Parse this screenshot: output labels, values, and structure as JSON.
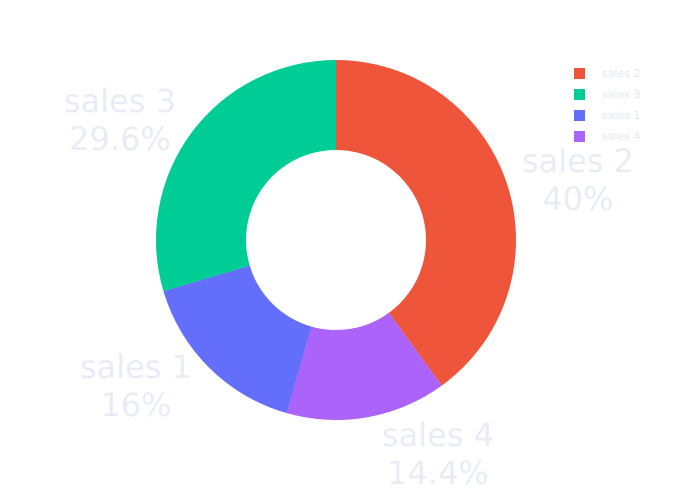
{
  "chart_data": {
    "type": "pie",
    "hole": 0.5,
    "slices": [
      {
        "label": "sales 2",
        "value": 40.0,
        "percent_text": "40%",
        "color": "#ef553b"
      },
      {
        "label": "sales 4",
        "value": 14.4,
        "percent_text": "14.4%",
        "color": "#ab63fa"
      },
      {
        "label": "sales 1",
        "value": 16.0,
        "percent_text": "16%",
        "color": "#636efa"
      },
      {
        "label": "sales 3",
        "value": 29.6,
        "percent_text": "29.6%",
        "color": "#00cc96"
      }
    ],
    "legend": {
      "placement": "top-right",
      "items": [
        {
          "label": "sales 2",
          "color": "#ef553b"
        },
        {
          "label": "sales 3",
          "color": "#00cc96"
        },
        {
          "label": "sales 1",
          "color": "#636efa"
        },
        {
          "label": "sales 4",
          "color": "#ab63fa"
        }
      ]
    }
  }
}
